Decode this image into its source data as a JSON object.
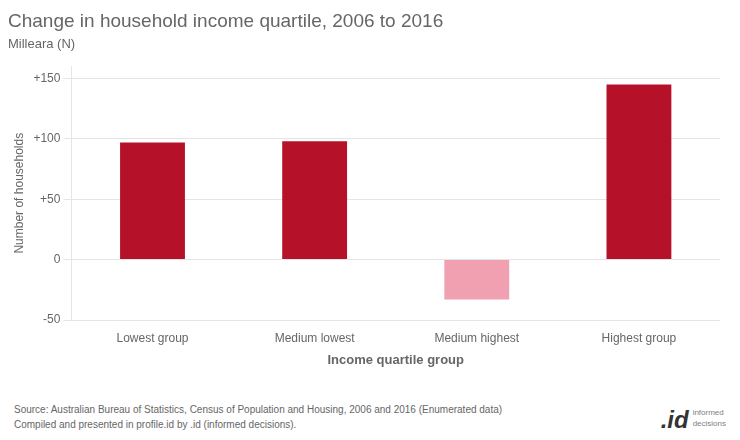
{
  "chart_data": {
    "type": "bar",
    "title": "Change in household income quartile, 2006 to 2016",
    "subtitle": "Milleara (N)",
    "categories": [
      "Lowest group",
      "Medium lowest",
      "Medium highest",
      "Highest group"
    ],
    "values": [
      97,
      98,
      -33,
      145
    ],
    "colors": [
      "#b5122a",
      "#b5122a",
      "#f0a0b0",
      "#b5122a"
    ],
    "xlabel": "Income quartile group",
    "ylabel": "Number of households",
    "ylim": [
      -50,
      160
    ],
    "yticks": [
      -50,
      0,
      {
        "value": 50,
        "label": "+50"
      },
      {
        "value": 100,
        "label": "+100"
      },
      {
        "value": 150,
        "label": "+150"
      }
    ],
    "grid": true,
    "annotations": [
      "Source: Australian Bureau of Statistics, Census of Population and Housing, 2006 and 2016 (Enumerated data)",
      "Compiled and presented in profile.id by .id (informed decisions).",
      ".id",
      "informed\ndecisions"
    ]
  }
}
